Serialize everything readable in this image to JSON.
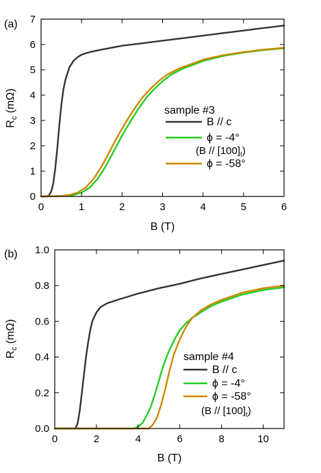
{
  "chart_data": [
    {
      "type": "line",
      "panel_label": "(a)",
      "xlabel": "B (T)",
      "ylabel_main": "R",
      "ylabel_sub": "c",
      "ylabel_unit": " (mΩ)",
      "xlim": [
        0,
        6
      ],
      "ylim": [
        0,
        7
      ],
      "xticks": [
        0,
        1,
        2,
        3,
        4,
        5,
        6
      ],
      "yticks": [
        0,
        1,
        2,
        3,
        4,
        5,
        6,
        7
      ],
      "xtick_labels": [
        "0",
        "1",
        "2",
        "3",
        "4",
        "5",
        "6"
      ],
      "ytick_labels": [
        "0",
        "1",
        "2",
        "3",
        "4",
        "5",
        "6",
        "7"
      ],
      "legend_title": "sample #3",
      "legend_placement": "center-right",
      "series": [
        {
          "name": "B // c",
          "color": "#333333",
          "x": [
            0.0,
            0.15,
            0.2,
            0.25,
            0.3,
            0.35,
            0.4,
            0.45,
            0.5,
            0.55,
            0.6,
            0.7,
            0.8,
            0.9,
            1.0,
            1.2,
            1.5,
            2.0,
            2.5,
            3.0,
            3.5,
            4.0,
            4.5,
            5.0,
            5.5,
            6.0
          ],
          "y": [
            0.0,
            0.0,
            0.05,
            0.2,
            0.5,
            1.1,
            1.9,
            2.8,
            3.6,
            4.2,
            4.6,
            5.1,
            5.35,
            5.5,
            5.6,
            5.7,
            5.8,
            5.95,
            6.05,
            6.15,
            6.25,
            6.35,
            6.45,
            6.55,
            6.65,
            6.75
          ]
        },
        {
          "name": "ϕ = -4°",
          "name_line2": "(B // [100]",
          "name_line2_sub": "t",
          "name_line2_end": ")",
          "color": "#22cc22",
          "x": [
            0.0,
            0.6,
            0.8,
            1.0,
            1.2,
            1.4,
            1.6,
            1.8,
            2.0,
            2.2,
            2.4,
            2.6,
            2.8,
            3.0,
            3.2,
            3.5,
            4.0,
            4.5,
            5.0,
            5.5,
            6.0
          ],
          "y": [
            0.0,
            0.02,
            0.05,
            0.15,
            0.35,
            0.7,
            1.2,
            1.8,
            2.4,
            2.95,
            3.45,
            3.9,
            4.25,
            4.55,
            4.8,
            5.05,
            5.35,
            5.55,
            5.68,
            5.78,
            5.85
          ]
        },
        {
          "name": "ϕ = -58°",
          "color": "#cc8800",
          "x": [
            0.0,
            0.5,
            0.7,
            0.9,
            1.1,
            1.3,
            1.5,
            1.7,
            1.9,
            2.1,
            2.3,
            2.5,
            2.7,
            2.9,
            3.1,
            3.4,
            4.0,
            4.5,
            5.0,
            5.5,
            6.0
          ],
          "y": [
            0.0,
            0.02,
            0.06,
            0.15,
            0.35,
            0.7,
            1.2,
            1.8,
            2.4,
            2.95,
            3.45,
            3.9,
            4.25,
            4.55,
            4.8,
            5.05,
            5.4,
            5.58,
            5.7,
            5.8,
            5.87
          ]
        }
      ]
    },
    {
      "type": "line",
      "panel_label": "(b)",
      "xlabel": "B (T)",
      "ylabel_main": "R",
      "ylabel_sub": "c",
      "ylabel_unit": " (mΩ)",
      "xlim": [
        0,
        11
      ],
      "ylim": [
        0,
        1.0
      ],
      "xticks": [
        0,
        2,
        4,
        6,
        8,
        10
      ],
      "yticks": [
        0,
        0.2,
        0.4,
        0.6,
        0.8,
        1.0
      ],
      "xtick_labels": [
        "0",
        "2",
        "4",
        "6",
        "8",
        "10"
      ],
      "ytick_labels": [
        "0.0",
        "0.2",
        "0.4",
        "0.6",
        "0.8",
        "1.0"
      ],
      "legend_title": "sample #4",
      "legend_placement": "bottom-right",
      "series": [
        {
          "name": "B // c",
          "color": "#333333",
          "x": [
            0.0,
            1.0,
            1.1,
            1.2,
            1.3,
            1.4,
            1.5,
            1.6,
            1.7,
            1.8,
            2.0,
            2.2,
            2.5,
            3.0,
            4.0,
            5.0,
            6.0,
            7.0,
            8.0,
            9.0,
            10.0,
            11.0
          ],
          "y": [
            0.0,
            0.0,
            0.03,
            0.1,
            0.2,
            0.3,
            0.4,
            0.48,
            0.55,
            0.6,
            0.65,
            0.68,
            0.7,
            0.72,
            0.755,
            0.785,
            0.81,
            0.84,
            0.865,
            0.89,
            0.915,
            0.94
          ]
        },
        {
          "name": "ϕ = -4°",
          "color": "#22cc22",
          "x": [
            0.0,
            3.8,
            4.0,
            4.2,
            4.4,
            4.6,
            4.8,
            5.0,
            5.2,
            5.5,
            5.8,
            6.0,
            6.3,
            6.6,
            7.0,
            7.5,
            8.0,
            9.0,
            10.0,
            11.0
          ],
          "y": [
            0.0,
            0.0,
            0.01,
            0.03,
            0.07,
            0.12,
            0.19,
            0.27,
            0.35,
            0.44,
            0.51,
            0.55,
            0.59,
            0.62,
            0.65,
            0.685,
            0.71,
            0.75,
            0.775,
            0.79
          ]
        },
        {
          "name": "ϕ = -58°",
          "name_line2": "(B // [100]",
          "name_line2_sub": "t",
          "name_line2_end": ")",
          "color": "#cc8800",
          "x": [
            0.0,
            4.5,
            4.7,
            4.9,
            5.1,
            5.3,
            5.5,
            5.7,
            6.0,
            6.3,
            6.6,
            7.0,
            7.5,
            8.0,
            9.0,
            10.0,
            11.0
          ],
          "y": [
            0.0,
            0.0,
            0.02,
            0.06,
            0.13,
            0.22,
            0.32,
            0.41,
            0.5,
            0.57,
            0.62,
            0.66,
            0.695,
            0.72,
            0.76,
            0.785,
            0.8
          ]
        }
      ]
    }
  ]
}
